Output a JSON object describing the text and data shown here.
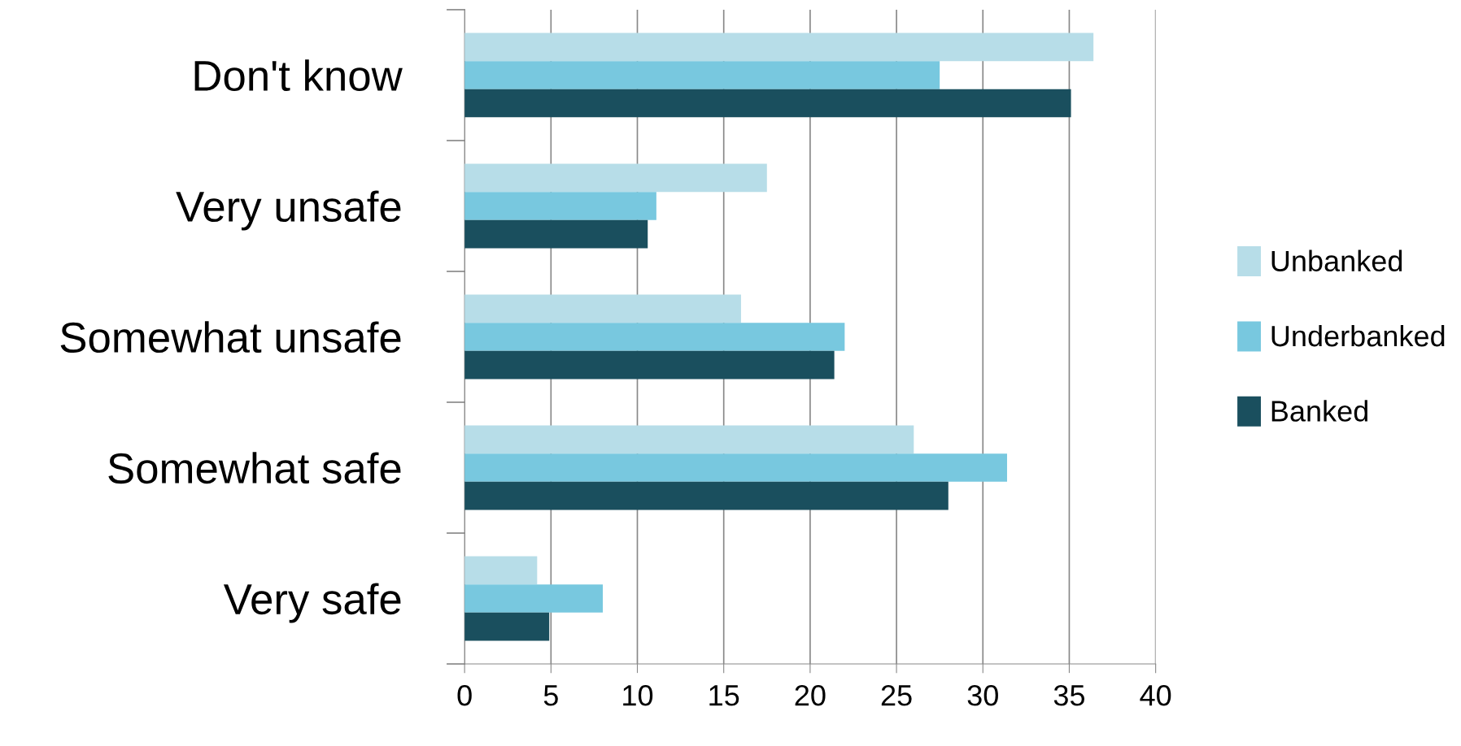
{
  "chart_data": {
    "type": "bar",
    "orientation": "horizontal",
    "categories": [
      "Don't know",
      "Very unsafe",
      "Somewhat unsafe",
      "Somewhat safe",
      "Very safe"
    ],
    "series": [
      {
        "name": "Unbanked",
        "color": "#b7dde8",
        "values": [
          36.4,
          17.5,
          16.0,
          26.0,
          4.2
        ]
      },
      {
        "name": "Underbanked",
        "color": "#78c8df",
        "values": [
          27.5,
          11.1,
          22.0,
          31.4,
          8.0
        ]
      },
      {
        "name": "Banked",
        "color": "#1a4f5e",
        "values": [
          35.1,
          10.6,
          21.4,
          28.0,
          4.9
        ]
      }
    ],
    "xlim": [
      0,
      40
    ],
    "xticks": [
      0,
      5,
      10,
      15,
      20,
      25,
      30,
      35,
      40
    ],
    "grid": "x",
    "legend": "right"
  }
}
